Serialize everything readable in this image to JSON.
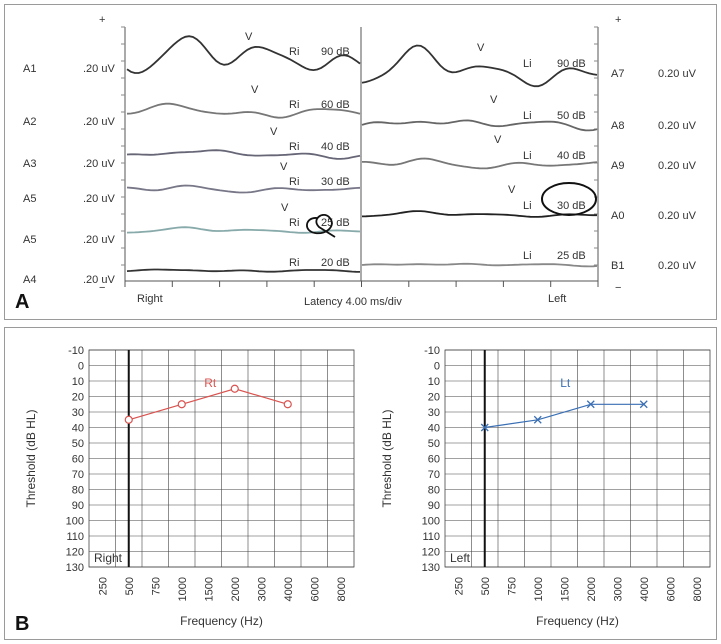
{
  "panel_a": {
    "letter": "A",
    "plus_sign": "+",
    "minus_sign": "−",
    "wave_v_marker": "V",
    "right": {
      "side_label": "Right",
      "traces": [
        {
          "channel": "A1",
          "scale": ".20 uV",
          "ear": "Ri",
          "level": "90 dB"
        },
        {
          "channel": "A2",
          "scale": ".20 uV",
          "ear": "Ri",
          "level": "60 dB"
        },
        {
          "channel": "A3",
          "scale": ".20 uV",
          "ear": "Ri",
          "level": "40 dB"
        },
        {
          "channel": "A5",
          "scale": ".20 uV",
          "ear": "Ri",
          "level": "30 dB"
        },
        {
          "channel": "A5",
          "scale": ".20 uV",
          "ear": "Ri",
          "level": "25 dB"
        },
        {
          "channel": "A4",
          "scale": ".20 uV",
          "ear": "Ri",
          "level": "20 dB"
        }
      ]
    },
    "left": {
      "side_label": "Left",
      "traces": [
        {
          "channel": "A7",
          "scale": "0.20 uV",
          "ear": "Li",
          "level": "90 dB"
        },
        {
          "channel": "A8",
          "scale": "0.20 uV",
          "ear": "Li",
          "level": "50 dB"
        },
        {
          "channel": "A9",
          "scale": "0.20 uV",
          "ear": "Li",
          "level": "40 dB"
        },
        {
          "channel": "A0",
          "scale": "0.20 uV",
          "ear": "Li",
          "level": "30 dB"
        },
        {
          "channel": "B1",
          "scale": "0.20 uV",
          "ear": "Li",
          "level": "25 dB"
        }
      ]
    },
    "latency_label": "Latency 4.00 ms/div"
  },
  "panel_b": {
    "letter": "B",
    "colors": {
      "right": "#d9534f",
      "left": "#3a6fb5",
      "grid": "#444444"
    }
  },
  "chart_data": [
    {
      "type": "line",
      "title": "",
      "series": [
        {
          "name": "Rt",
          "marker": "circle",
          "color": "#d9534f",
          "x": [
            500,
            1000,
            2000,
            4000
          ],
          "y": [
            35,
            25,
            15,
            25
          ]
        }
      ],
      "ear_label": "Right",
      "xlabel": "Frequency (Hz)",
      "ylabel": "Threshold (dB HL)",
      "x_ticks": [
        "250",
        "500",
        "750",
        "1000",
        "1500",
        "2000",
        "3000",
        "4000",
        "6000",
        "8000"
      ],
      "y_ticks": [
        -10,
        0,
        10,
        20,
        30,
        40,
        50,
        60,
        70,
        80,
        90,
        100,
        110,
        120,
        130
      ],
      "ylim": [
        -10,
        130
      ],
      "y_inverted": true,
      "grid": true
    },
    {
      "type": "line",
      "title": "",
      "series": [
        {
          "name": "Lt",
          "marker": "x",
          "color": "#3a6fb5",
          "x": [
            500,
            1000,
            2000,
            4000
          ],
          "y": [
            40,
            35,
            25,
            25
          ]
        }
      ],
      "ear_label": "Left",
      "xlabel": "Frequency (Hz)",
      "ylabel": "Threshold (dB HL)",
      "x_ticks": [
        "250",
        "500",
        "750",
        "1000",
        "1500",
        "2000",
        "3000",
        "4000",
        "6000",
        "8000"
      ],
      "y_ticks": [
        -10,
        0,
        10,
        20,
        30,
        40,
        50,
        60,
        70,
        80,
        90,
        100,
        110,
        120,
        130
      ],
      "ylim": [
        -10,
        130
      ],
      "y_inverted": true,
      "grid": true
    }
  ]
}
